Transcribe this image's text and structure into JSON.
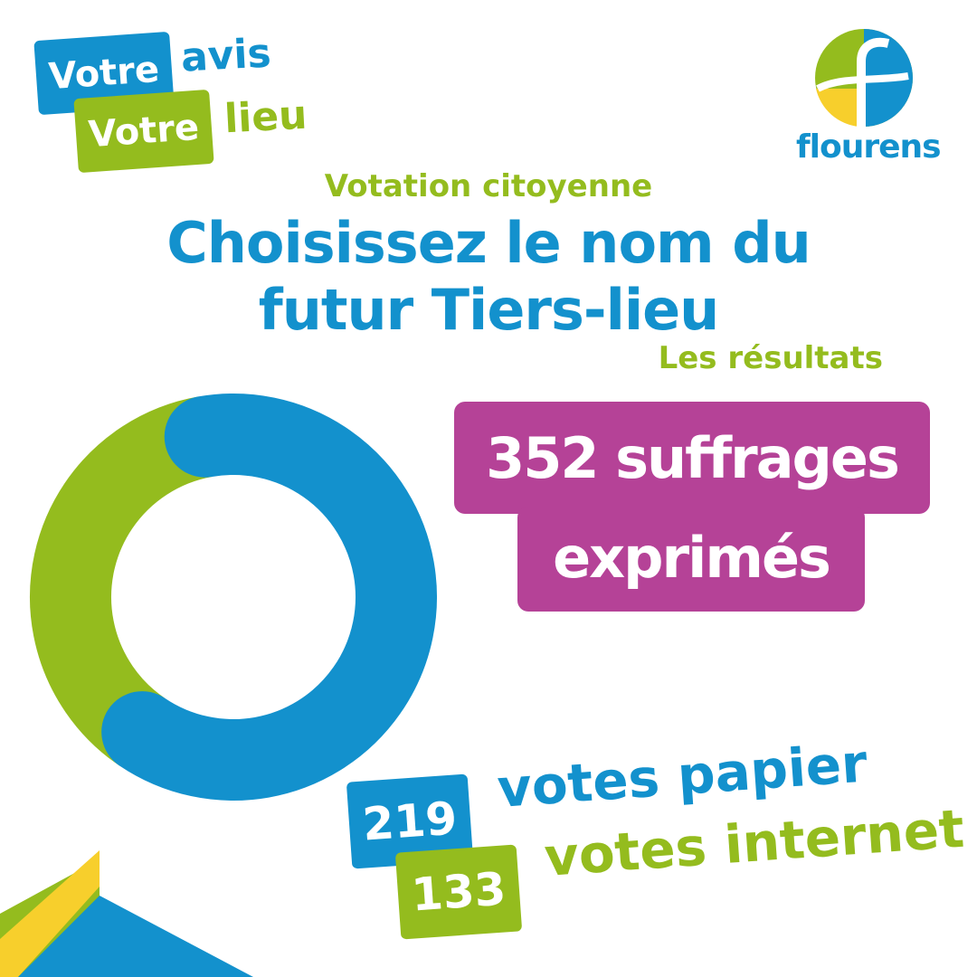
{
  "brand": {
    "tag_line1_box": "Votre",
    "tag_line1_word": "avis",
    "tag_line2_box": "Votre",
    "tag_line2_word": "lieu",
    "logo_name": "flourens",
    "logo_icon": "flourens-f-logo-icon"
  },
  "header": {
    "subtitle": "Votation citoyenne",
    "title_line1": "Choisissez le nom du",
    "title_line2": "futur Tiers-lieu",
    "results_label": "Les résultats"
  },
  "highlight": {
    "line1": "352 suffrages",
    "line2": "exprimés"
  },
  "breakdown": {
    "papier_count": "219",
    "papier_label": "votes papier",
    "internet_count": "133",
    "internet_label": "votes internet"
  },
  "colors": {
    "blue": "#1391cd",
    "green": "#94bc1e",
    "magenta": "#b54297",
    "yellow": "#f7cf2c"
  },
  "chart_data": {
    "type": "pie",
    "categories": [
      "votes papier",
      "votes internet"
    ],
    "values": [
      219,
      133
    ],
    "total": 352,
    "colors": [
      "#1391cd",
      "#94bc1e"
    ]
  }
}
